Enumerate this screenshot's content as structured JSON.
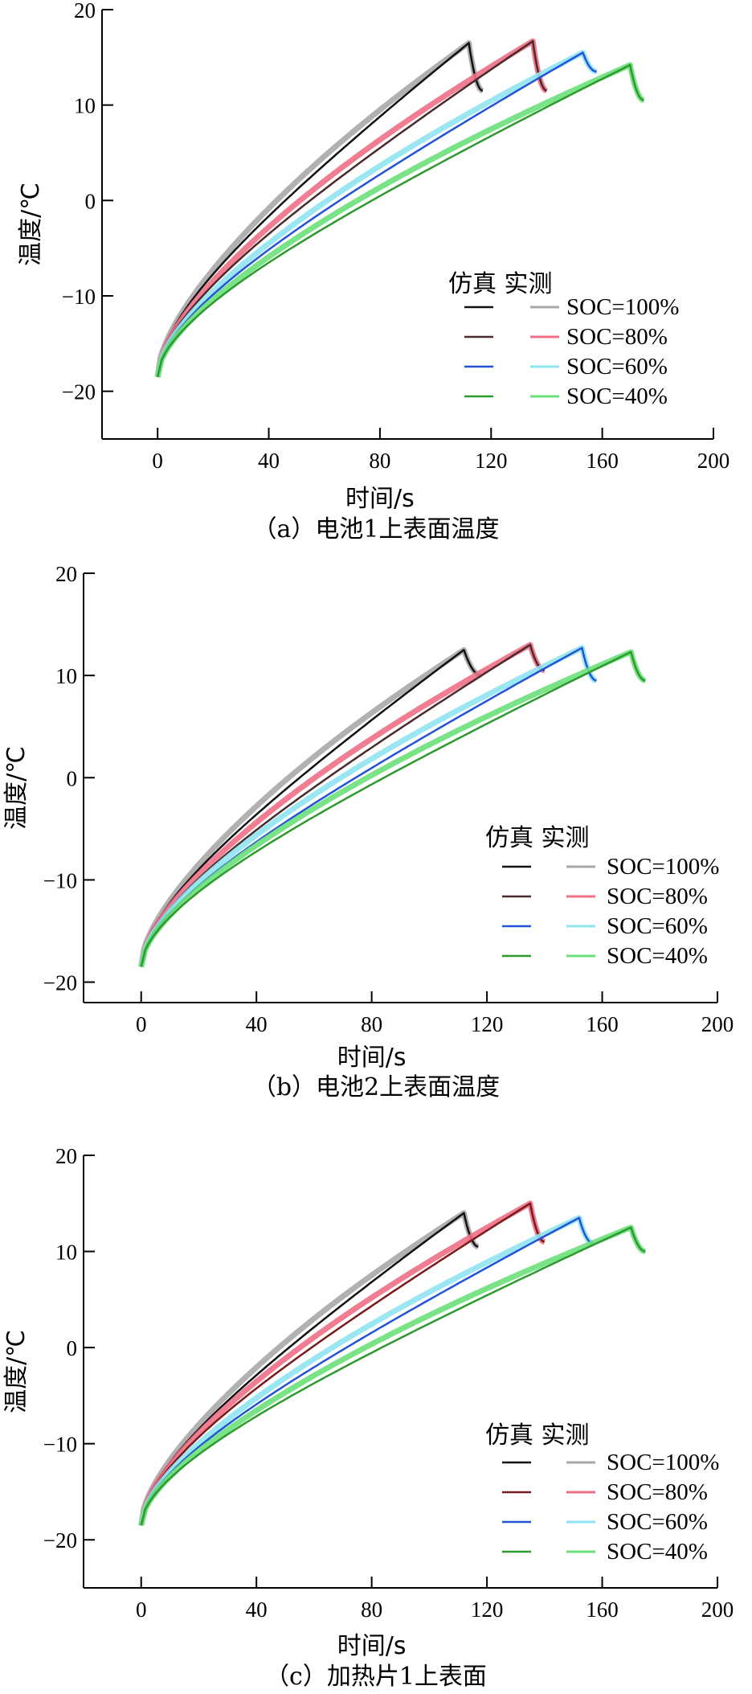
{
  "chart_data": [
    {
      "type": "line",
      "caption": "（a）电池1上表面温度",
      "xlabel": "时间/s",
      "ylabel": "温度/℃",
      "xlim": [
        -20,
        200
      ],
      "ylim": [
        -25,
        20
      ],
      "xticks": [
        0,
        40,
        80,
        120,
        160,
        200
      ],
      "yticks": [
        -20,
        -10,
        0,
        10,
        20
      ],
      "legend_header": "仿真 实测",
      "legend_position": "lower-right",
      "series": [
        {
          "name": "SOC=100%",
          "sim_color": "#111111",
          "exp_color": "#a8a8a8",
          "t_start": 0,
          "T_start": -18.5,
          "t_peak": 112,
          "T_peak": 16.5,
          "t_end": 117,
          "T_end": 11.5
        },
        {
          "name": "SOC=80%",
          "sim_color": "#4a2a2a",
          "exp_color": "#ee6f86",
          "t_start": 0,
          "T_start": -18.5,
          "t_peak": 135,
          "T_peak": 16.7,
          "t_end": 140,
          "T_end": 11.5
        },
        {
          "name": "SOC=60%",
          "sim_color": "#2354d8",
          "exp_color": "#8fe3f2",
          "t_start": 0,
          "T_start": -18.5,
          "t_peak": 153,
          "T_peak": 15.5,
          "t_end": 158,
          "T_end": 13.5
        },
        {
          "name": "SOC=40%",
          "sim_color": "#2d9a2d",
          "exp_color": "#6be07a",
          "t_start": 0,
          "T_start": -18.5,
          "t_peak": 170,
          "T_peak": 14.2,
          "t_end": 175,
          "T_end": 10.5
        }
      ]
    },
    {
      "type": "line",
      "caption": "（b）电池2上表面温度",
      "xlabel": "时间/s",
      "ylabel": "温度/℃",
      "xlim": [
        -20,
        200
      ],
      "ylim": [
        -22,
        20
      ],
      "xticks": [
        0,
        40,
        80,
        120,
        160,
        200
      ],
      "yticks": [
        -20,
        -10,
        0,
        10,
        20
      ],
      "legend_header": "仿真 实测",
      "legend_position": "lower-right",
      "series": [
        {
          "name": "SOC=100%",
          "sim_color": "#111111",
          "exp_color": "#a8a8a8",
          "t_start": 0,
          "T_start": -18.5,
          "t_peak": 112,
          "T_peak": 12.5,
          "t_end": 118,
          "T_end": 10.0
        },
        {
          "name": "SOC=80%",
          "sim_color": "#4a2a2a",
          "exp_color": "#ee6f86",
          "t_start": 0,
          "T_start": -18.5,
          "t_peak": 135,
          "T_peak": 13.0,
          "t_end": 140,
          "T_end": 10.5
        },
        {
          "name": "SOC=60%",
          "sim_color": "#2354d8",
          "exp_color": "#8fe3f2",
          "t_start": 0,
          "T_start": -18.5,
          "t_peak": 153,
          "T_peak": 12.7,
          "t_end": 158,
          "T_end": 9.5
        },
        {
          "name": "SOC=40%",
          "sim_color": "#2d9a2d",
          "exp_color": "#6be07a",
          "t_start": 0,
          "T_start": -18.5,
          "t_peak": 170,
          "T_peak": 12.3,
          "t_end": 175,
          "T_end": 9.5
        }
      ]
    },
    {
      "type": "line",
      "caption": "（c）加热片1上表面",
      "xlabel": "时间/s",
      "ylabel": "温度/℃",
      "xlim": [
        -20,
        200
      ],
      "ylim": [
        -25,
        20
      ],
      "xticks": [
        0,
        40,
        80,
        120,
        160,
        200
      ],
      "yticks": [
        -20,
        -10,
        0,
        10,
        20
      ],
      "legend_header": "仿真 实测",
      "legend_position": "lower-right",
      "series": [
        {
          "name": "SOC=100%",
          "sim_color": "#111111",
          "exp_color": "#a8a8a8",
          "t_start": 0,
          "T_start": -18.5,
          "t_peak": 112,
          "T_peak": 14.0,
          "t_end": 117,
          "T_end": 10.5
        },
        {
          "name": "SOC=80%",
          "sim_color": "#7a1a1a",
          "exp_color": "#ee6f86",
          "t_start": 0,
          "T_start": -18.5,
          "t_peak": 135,
          "T_peak": 15.0,
          "t_end": 140,
          "T_end": 11.0
        },
        {
          "name": "SOC=60%",
          "sim_color": "#2354d8",
          "exp_color": "#8fe3f2",
          "t_start": 0,
          "T_start": -18.5,
          "t_peak": 152,
          "T_peak": 13.5,
          "t_end": 157,
          "T_end": 10.8
        },
        {
          "name": "SOC=40%",
          "sim_color": "#2d9a2d",
          "exp_color": "#6be07a",
          "t_start": 0,
          "T_start": -18.5,
          "t_peak": 170,
          "T_peak": 12.5,
          "t_end": 175,
          "T_end": 10.0
        }
      ]
    }
  ]
}
